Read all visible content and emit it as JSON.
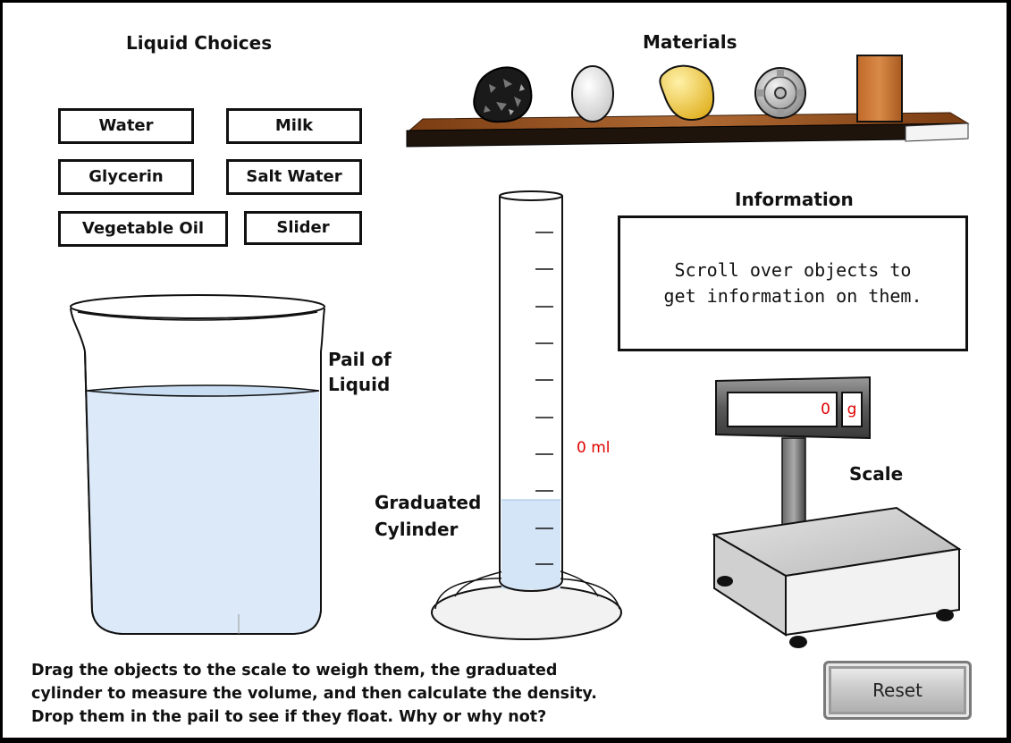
{
  "liquid_choices": {
    "heading": "Liquid Choices",
    "buttons": [
      {
        "id": "water",
        "label": "Water"
      },
      {
        "id": "milk",
        "label": "Milk"
      },
      {
        "id": "glycerin",
        "label": "Glycerin"
      },
      {
        "id": "salt_water",
        "label": "Salt Water"
      },
      {
        "id": "vegetable_oil",
        "label": "Vegetable Oil"
      },
      {
        "id": "slider",
        "label": "Slider"
      }
    ]
  },
  "materials": {
    "heading": "Materials",
    "items": [
      {
        "name": "coal",
        "icon": "coal-lump-icon"
      },
      {
        "name": "egg",
        "icon": "egg-icon"
      },
      {
        "name": "sponge",
        "icon": "yellow-blob-icon"
      },
      {
        "name": "metal-weight",
        "icon": "metal-weight-icon"
      },
      {
        "name": "wood-block",
        "icon": "wood-block-icon"
      }
    ]
  },
  "information": {
    "heading": "Information",
    "text": "Scroll over objects to\nget information on them."
  },
  "pail": {
    "label": "Pail of\nLiquid",
    "liquid_color": "#dbe9f8",
    "fill_level": 0.8
  },
  "cylinder": {
    "label": "Graduated\nCylinder",
    "reading_value": "0",
    "reading_unit": "ml",
    "fill_level": 0.22
  },
  "scale": {
    "label": "Scale",
    "reading_value": "0",
    "reading_unit": "g"
  },
  "instructions": "Drag the objects to the scale to weigh them, the graduated\ncylinder to measure the volume, and then calculate the density.\nDrop them in the pail to see if they float. Why or why not?",
  "reset_label": "Reset",
  "colors": {
    "accent_red": "#e00000",
    "liquid": "#dbe9f8",
    "shelf": "#8b4a1e"
  }
}
